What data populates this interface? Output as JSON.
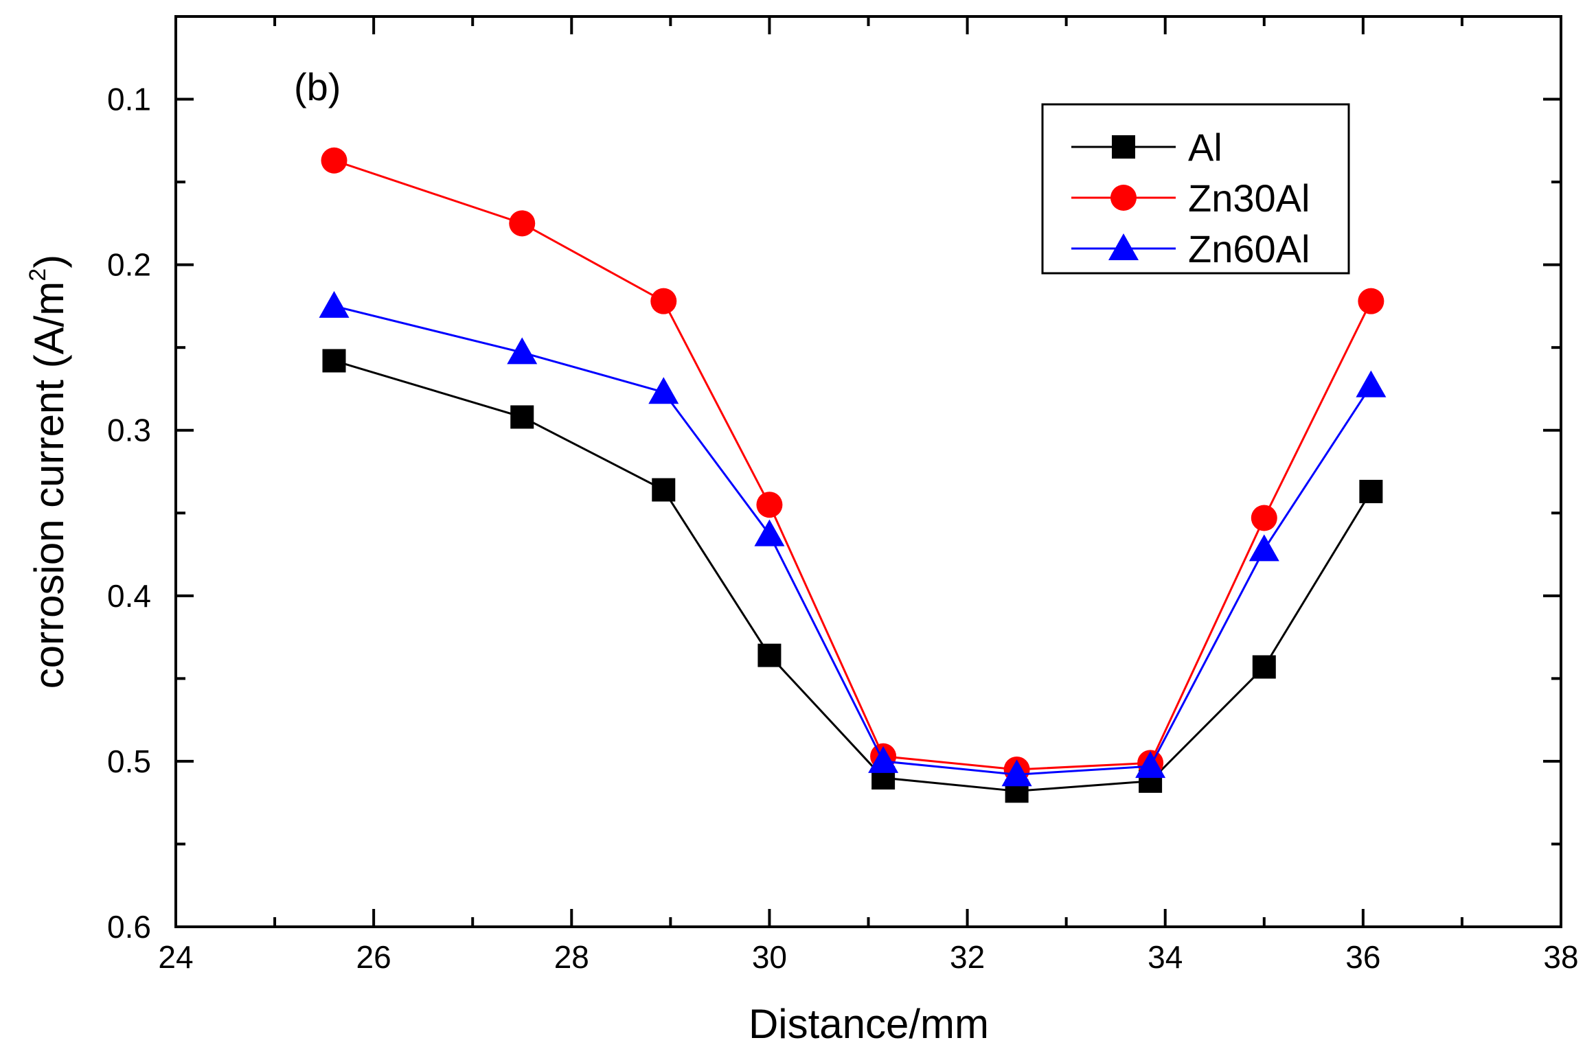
{
  "chart_data": {
    "type": "line",
    "panel_label": "(b)",
    "xlabel": "Distance/mm",
    "ylabel": "corrosion current (A/m",
    "ylabel_superscript": "2",
    "ylabel_close": ")",
    "xlim": [
      24,
      38
    ],
    "ylim": [
      0.05,
      0.6
    ],
    "y_inverted": true,
    "x_major_ticks": [
      24,
      26,
      28,
      30,
      32,
      34,
      36,
      38
    ],
    "x_tick_labels": [
      "24",
      "26",
      "28",
      "30",
      "32",
      "34",
      "36",
      "38"
    ],
    "y_major_ticks": [
      0.1,
      0.2,
      0.3,
      0.4,
      0.5,
      0.6
    ],
    "y_tick_labels": [
      "0.1",
      "0.2",
      "0.3",
      "0.4",
      "0.5",
      "0.6"
    ],
    "grid": false,
    "legend_position": "top-right",
    "x": [
      25.6,
      27.5,
      28.93,
      30.0,
      31.15,
      32.5,
      33.85,
      35.0,
      36.08
    ],
    "series": [
      {
        "name": "Al",
        "color": "#000000",
        "marker": "square",
        "values": [
          0.258,
          0.292,
          0.336,
          0.436,
          0.51,
          0.518,
          0.512,
          0.443,
          0.337
        ]
      },
      {
        "name": "Zn30Al",
        "color": "#ff0000",
        "marker": "circle",
        "values": [
          0.137,
          0.175,
          0.222,
          0.345,
          0.497,
          0.505,
          0.501,
          0.353,
          0.222
        ]
      },
      {
        "name": "Zn60Al",
        "color": "#0000ff",
        "marker": "triangle",
        "values": [
          0.225,
          0.253,
          0.277,
          0.363,
          0.5,
          0.508,
          0.503,
          0.372,
          0.273
        ]
      }
    ]
  }
}
